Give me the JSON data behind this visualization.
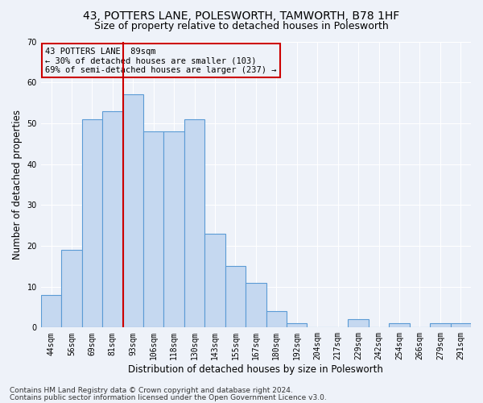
{
  "title1": "43, POTTERS LANE, POLESWORTH, TAMWORTH, B78 1HF",
  "title2": "Size of property relative to detached houses in Polesworth",
  "xlabel": "Distribution of detached houses by size in Polesworth",
  "ylabel": "Number of detached properties",
  "categories": [
    "44sqm",
    "56sqm",
    "69sqm",
    "81sqm",
    "93sqm",
    "106sqm",
    "118sqm",
    "130sqm",
    "143sqm",
    "155sqm",
    "167sqm",
    "180sqm",
    "192sqm",
    "204sqm",
    "217sqm",
    "229sqm",
    "242sqm",
    "254sqm",
    "266sqm",
    "279sqm",
    "291sqm"
  ],
  "values": [
    8,
    19,
    51,
    53,
    57,
    48,
    48,
    51,
    23,
    15,
    11,
    4,
    1,
    0,
    0,
    2,
    0,
    1,
    0,
    1,
    1
  ],
  "bar_color": "#c5d8f0",
  "bar_edge_color": "#5b9bd5",
  "ylim": [
    0,
    70
  ],
  "yticks": [
    0,
    10,
    20,
    30,
    40,
    50,
    60,
    70
  ],
  "annotation_text": "43 POTTERS LANE: 89sqm\n← 30% of detached houses are smaller (103)\n69% of semi-detached houses are larger (237) →",
  "vline_x_idx": 3.5,
  "vline_color": "#cc0000",
  "footer1": "Contains HM Land Registry data © Crown copyright and database right 2024.",
  "footer2": "Contains public sector information licensed under the Open Government Licence v3.0.",
  "background_color": "#eef2f9",
  "grid_color": "#ffffff",
  "title_fontsize": 10,
  "subtitle_fontsize": 9,
  "axis_label_fontsize": 8.5,
  "tick_fontsize": 7,
  "footer_fontsize": 6.5
}
